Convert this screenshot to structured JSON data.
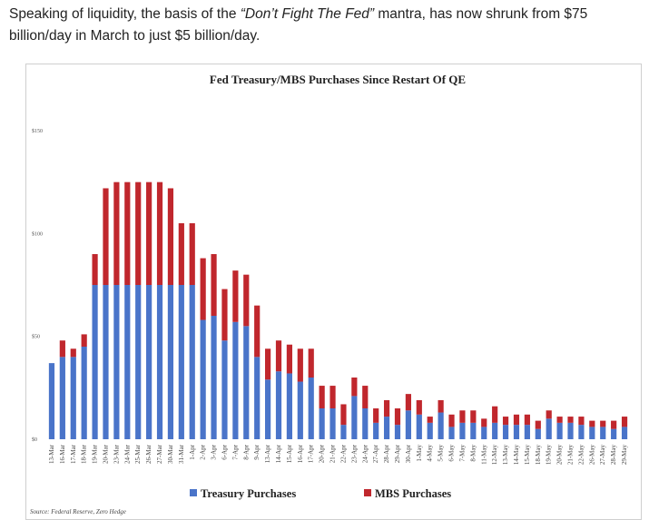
{
  "intro": {
    "part1": "Speaking of liquidity, the basis of the ",
    "quote": "“Don’t Fight The Fed”",
    "part2": " mantra, has now shrunk from $75 billion/day in March to just $5 billion/day."
  },
  "chart_data": {
    "type": "bar",
    "stacked": true,
    "title": "Fed Treasury/MBS Purchases Since Restart Of QE",
    "ylim": [
      0,
      150
    ],
    "yticks": [
      "$0",
      "$50",
      "$100",
      "$150"
    ],
    "grid": false,
    "legend_position": "bottom",
    "categories": [
      "13-Mar",
      "16-Mar",
      "17-Mar",
      "18-Mar",
      "19-Mar",
      "20-Mar",
      "23-Mar",
      "24-Mar",
      "25-Mar",
      "26-Mar",
      "27-Mar",
      "30-Mar",
      "31-Mar",
      "1-Apr",
      "2-Apr",
      "3-Apr",
      "6-Apr",
      "7-Apr",
      "8-Apr",
      "9-Apr",
      "13-Apr",
      "14-Apr",
      "15-Apr",
      "16-Apr",
      "17-Apr",
      "20-Apr",
      "21-Apr",
      "22-Apr",
      "23-Apr",
      "24-Apr",
      "27-Apr",
      "28-Apr",
      "29-Apr",
      "30-Apr",
      "1-May",
      "4-May",
      "5-May",
      "6-May",
      "7-May",
      "8-May",
      "11-May",
      "12-May",
      "13-May",
      "14-May",
      "15-May",
      "18-May",
      "19-May",
      "20-May",
      "21-May",
      "22-May",
      "26-May",
      "27-May",
      "28-May",
      "29-May"
    ],
    "series": [
      {
        "name": "Treasury Purchases",
        "color": "#4a74c9",
        "values": [
          37,
          40,
          40,
          45,
          75,
          75,
          75,
          75,
          75,
          75,
          75,
          75,
          75,
          75,
          58,
          60,
          48,
          57,
          55,
          40,
          29,
          33,
          32,
          28,
          30,
          15,
          15,
          7,
          21,
          15,
          8,
          11,
          7,
          14,
          12,
          8,
          13,
          6,
          8,
          8,
          6,
          8,
          7,
          7,
          7,
          5,
          10,
          8,
          8,
          7,
          6,
          6,
          5,
          6
        ]
      },
      {
        "name": "MBS Purchases",
        "color": "#c0272d",
        "values": [
          0,
          8,
          4,
          6,
          15,
          47,
          50,
          50,
          50,
          50,
          50,
          47,
          30,
          30,
          30,
          30,
          25,
          25,
          25,
          25,
          15,
          15,
          14,
          16,
          14,
          11,
          11,
          10,
          9,
          11,
          7,
          8,
          8,
          8,
          7,
          3,
          6,
          6,
          6,
          6,
          4,
          8,
          4,
          5,
          5,
          4,
          4,
          3,
          3,
          4,
          3,
          3,
          4,
          5
        ]
      }
    ],
    "source": "Source: Federal Reserve, Zero Hedge"
  }
}
